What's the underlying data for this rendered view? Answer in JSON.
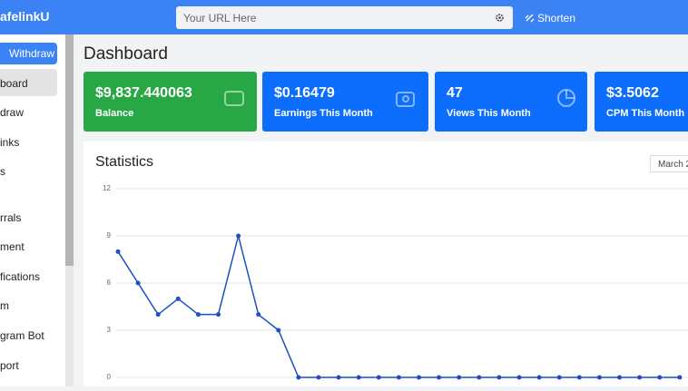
{
  "header": {
    "brand": "afelinkU",
    "url_placeholder": "Your URL Here",
    "button": "Shorten"
  },
  "sidebar": {
    "button": "Withdraw",
    "items": [
      "board",
      "draw",
      "inks",
      "s",
      "rrals",
      "ment",
      "fications",
      "m",
      "gram Bot",
      "port"
    ]
  },
  "page_title": "Dashboard",
  "cards": [
    {
      "value": "$9,837.440063",
      "label": "Balance"
    },
    {
      "value": "$0.16479",
      "label": "Earnings This Month"
    },
    {
      "value": "47",
      "label": "Views This Month"
    },
    {
      "value": "$3.5062",
      "label": "CPM This Month"
    }
  ],
  "statistics": {
    "title": "Statistics",
    "date": "March 2"
  },
  "chart_data": {
    "type": "line",
    "color": "#1d4fc4",
    "values": [
      8,
      6,
      4,
      5,
      4,
      4,
      9,
      4,
      3,
      0,
      0,
      0,
      0,
      0,
      0,
      0,
      0,
      0,
      0,
      0,
      0,
      0,
      0,
      0,
      0,
      0,
      0,
      0,
      0
    ],
    "ylim": [
      0,
      12
    ],
    "yticks": [
      0,
      3,
      6,
      9,
      12
    ],
    "grid": true
  }
}
